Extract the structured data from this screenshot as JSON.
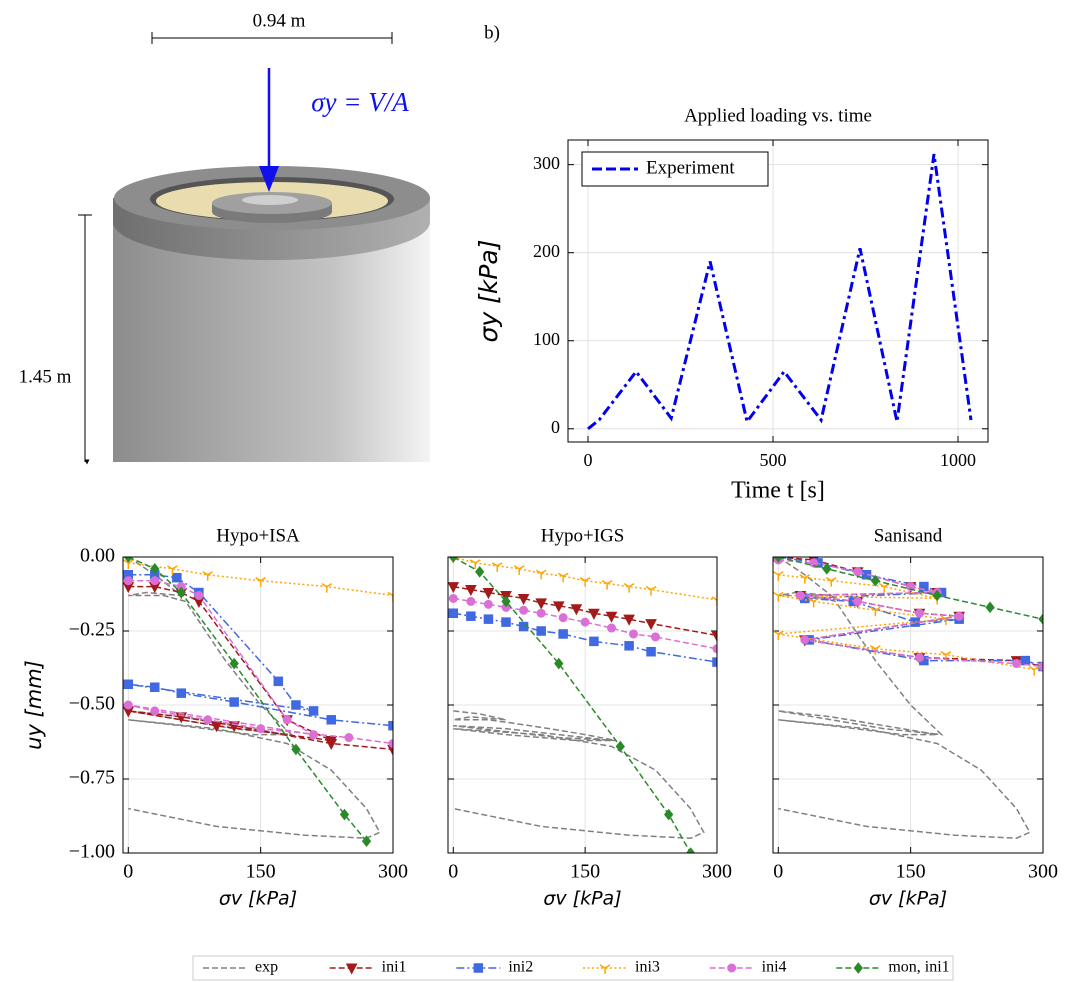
{
  "illustration": {
    "width_label": "0.94 m",
    "height_label": "1.45 m",
    "load_label": "σy = V/A",
    "panel_label": "b)"
  },
  "chart_data": [
    {
      "type": "line",
      "title": "Applied loading vs. time",
      "xlabel": "Time t [s]",
      "ylabel": "σy [kPa]",
      "xlim": [
        -54,
        1081
      ],
      "xticks": [
        0,
        500,
        1000
      ],
      "ylim": [
        -15,
        328
      ],
      "yticks": [
        0,
        100,
        200,
        300
      ],
      "grid": true,
      "legend": "upper left",
      "series": [
        {
          "name": "Experiment",
          "color": "#0000ee",
          "linestyle": "dashdot",
          "x": [
            0,
            30,
            130,
            225,
            330,
            430,
            530,
            630,
            735,
            835,
            935,
            1035
          ],
          "values": [
            0,
            10,
            65,
            12,
            190,
            8,
            65,
            10,
            205,
            8,
            312,
            10
          ]
        }
      ]
    },
    {
      "type": "line",
      "title": "Hypo+ISA",
      "xlabel": "σv [kPa]",
      "ylabel": "uy [mm]",
      "xlim": [
        -6,
        300
      ],
      "xticks": [
        0,
        150,
        300
      ],
      "ylim": [
        -1,
        0
      ],
      "yticks": [
        {
          "value": 0,
          "label": "0.00"
        },
        {
          "value": -0.25,
          "label": "−0.25"
        },
        {
          "value": -0.5,
          "label": "−0.50"
        },
        {
          "value": -0.75,
          "label": "−0.75"
        },
        {
          "value": -1,
          "label": "−1.00"
        }
      ],
      "grid": true,
      "legend": "below figure",
      "series": [
        {
          "name": "exp",
          "color": "#808080",
          "linestyle": "dashed",
          "marker": "none",
          "x": [
            0,
            30,
            60,
            20,
            0,
            40,
            65,
            110,
            150,
            185,
            120,
            60,
            0,
            60,
            120,
            180,
            140,
            60,
            0,
            100,
            180,
            230,
            270,
            285,
            270,
            200,
            100,
            0
          ],
          "values": [
            0,
            -0.06,
            -0.13,
            -0.12,
            -0.13,
            -0.13,
            -0.15,
            -0.35,
            -0.5,
            -0.6,
            -0.58,
            -0.55,
            -0.52,
            -0.54,
            -0.57,
            -0.6,
            -0.6,
            -0.57,
            -0.55,
            -0.58,
            -0.63,
            -0.72,
            -0.85,
            -0.93,
            -0.95,
            -0.94,
            -0.91,
            -0.85
          ]
        },
        {
          "name": "ini1",
          "color": "#a31a1a",
          "linestyle": "dashed",
          "marker": "triangle-down",
          "x": [
            0,
            30,
            60,
            80,
            180,
            230,
            100,
            0,
            60,
            120,
            230,
            300
          ],
          "values": [
            -0.1,
            -0.1,
            -0.12,
            -0.15,
            -0.55,
            -0.62,
            -0.57,
            -0.52,
            -0.54,
            -0.57,
            -0.63,
            -0.65
          ]
        },
        {
          "name": "ini2",
          "color": "#4169e1",
          "linestyle": "dashdot",
          "marker": "square",
          "x": [
            0,
            30,
            55,
            80,
            170,
            190,
            210,
            0,
            30,
            60,
            120,
            230,
            300
          ],
          "values": [
            -0.06,
            -0.06,
            -0.07,
            -0.12,
            -0.42,
            -0.5,
            -0.52,
            -0.43,
            -0.44,
            -0.46,
            -0.49,
            -0.55,
            -0.57
          ]
        },
        {
          "name": "ini3",
          "color": "#ffa500",
          "linestyle": "dotted",
          "marker": "tri-down",
          "x": [
            0,
            50,
            90,
            150,
            225,
            300
          ],
          "values": [
            -0.02,
            -0.04,
            -0.06,
            -0.08,
            -0.1,
            -0.13
          ]
        },
        {
          "name": "ini4",
          "color": "#da70d6",
          "linestyle": "dashed",
          "marker": "circle",
          "x": [
            0,
            30,
            60,
            80,
            180,
            210,
            0,
            30,
            90,
            150,
            250,
            300
          ],
          "values": [
            -0.08,
            -0.08,
            -0.1,
            -0.13,
            -0.55,
            -0.6,
            -0.5,
            -0.52,
            -0.55,
            -0.58,
            -0.61,
            -0.63
          ]
        },
        {
          "name": "mon, ini1",
          "color": "#2a8a2a",
          "linestyle": "dashed",
          "marker": "diamond",
          "x": [
            0,
            30,
            60,
            120,
            190,
            245,
            270
          ],
          "values": [
            0,
            -0.04,
            -0.12,
            -0.36,
            -0.65,
            -0.87,
            -0.96
          ]
        }
      ]
    },
    {
      "type": "line",
      "title": "Hypo+IGS",
      "xlabel": "σv [kPa]",
      "xlim": [
        -6,
        300
      ],
      "xticks": [
        0,
        150,
        300
      ],
      "ylim": [
        -1,
        0
      ],
      "yticks": [
        0,
        -0.25,
        -0.5,
        -0.75,
        -1
      ],
      "ytick_labels": false,
      "grid": true,
      "series": [
        {
          "name": "exp",
          "color": "#808080",
          "linestyle": "dashed",
          "marker": "none",
          "x": [
            0,
            30,
            60,
            20,
            0,
            40,
            65,
            110,
            150,
            185,
            120,
            60,
            0,
            60,
            120,
            180,
            140,
            60,
            0,
            100,
            180,
            230,
            270,
            285,
            270,
            200,
            100,
            0
          ],
          "values": [
            -0.52,
            -0.53,
            -0.55,
            -0.54,
            -0.55,
            -0.55,
            -0.56,
            -0.58,
            -0.6,
            -0.62,
            -0.61,
            -0.59,
            -0.57,
            -0.58,
            -0.6,
            -0.62,
            -0.62,
            -0.6,
            -0.58,
            -0.6,
            -0.64,
            -0.72,
            -0.85,
            -0.93,
            -0.95,
            -0.94,
            -0.91,
            -0.85
          ]
        },
        {
          "name": "ini1",
          "color": "#a31a1a",
          "linestyle": "dashed",
          "marker": "triangle-down",
          "x": [
            0,
            20,
            40,
            60,
            80,
            100,
            120,
            140,
            160,
            180,
            200,
            225,
            300
          ],
          "values": [
            -0.1,
            -0.11,
            -0.12,
            -0.13,
            -0.14,
            -0.155,
            -0.165,
            -0.175,
            -0.19,
            -0.2,
            -0.21,
            -0.225,
            -0.265
          ]
        },
        {
          "name": "ini2",
          "color": "#4169e1",
          "linestyle": "dashdot",
          "marker": "square",
          "x": [
            0,
            20,
            40,
            60,
            80,
            100,
            125,
            160,
            200,
            225,
            300
          ],
          "values": [
            -0.19,
            -0.2,
            -0.21,
            -0.22,
            -0.235,
            -0.25,
            -0.26,
            -0.285,
            -0.3,
            -0.32,
            -0.355
          ]
        },
        {
          "name": "ini3",
          "color": "#ffa500",
          "linestyle": "dotted",
          "marker": "tri-down",
          "x": [
            0,
            25,
            50,
            75,
            100,
            125,
            150,
            175,
            200,
            225,
            300
          ],
          "values": [
            0,
            -0.02,
            -0.03,
            -0.04,
            -0.055,
            -0.065,
            -0.08,
            -0.09,
            -0.1,
            -0.11,
            -0.145
          ]
        },
        {
          "name": "ini4",
          "color": "#da70d6",
          "linestyle": "dashed",
          "marker": "circle",
          "x": [
            0,
            20,
            40,
            60,
            80,
            100,
            125,
            150,
            180,
            205,
            230,
            300
          ],
          "values": [
            -0.14,
            -0.15,
            -0.16,
            -0.17,
            -0.18,
            -0.19,
            -0.205,
            -0.22,
            -0.24,
            -0.26,
            -0.27,
            -0.31
          ]
        },
        {
          "name": "mon, ini1",
          "color": "#2a8a2a",
          "linestyle": "dashed",
          "marker": "diamond",
          "x": [
            0,
            30,
            60,
            120,
            190,
            245,
            270
          ],
          "values": [
            0,
            -0.05,
            -0.15,
            -0.36,
            -0.64,
            -0.87,
            -1.0
          ]
        }
      ]
    },
    {
      "type": "line",
      "title": "Sanisand",
      "xlabel": "σv [kPa]",
      "xlim": [
        -6,
        300
      ],
      "xticks": [
        0,
        150,
        300
      ],
      "ylim": [
        -1,
        0
      ],
      "yticks": [
        0,
        -0.25,
        -0.5,
        -0.75,
        -1
      ],
      "ytick_labels": false,
      "grid": true,
      "series": [
        {
          "name": "exp",
          "color": "#808080",
          "linestyle": "dashed",
          "marker": "none",
          "x": [
            0,
            30,
            60,
            20,
            0,
            40,
            65,
            110,
            150,
            185,
            120,
            60,
            0,
            60,
            120,
            180,
            140,
            60,
            0,
            100,
            180,
            230,
            270,
            285,
            270,
            200,
            100,
            0
          ],
          "values": [
            0,
            -0.06,
            -0.13,
            -0.12,
            -0.13,
            -0.13,
            -0.15,
            -0.35,
            -0.5,
            -0.6,
            -0.58,
            -0.55,
            -0.52,
            -0.54,
            -0.57,
            -0.6,
            -0.6,
            -0.57,
            -0.55,
            -0.58,
            -0.63,
            -0.72,
            -0.85,
            -0.93,
            -0.95,
            -0.94,
            -0.91,
            -0.85
          ]
        },
        {
          "name": "ini1",
          "color": "#a31a1a",
          "linestyle": "dashed",
          "marker": "triangle-down",
          "x": [
            0,
            40,
            90,
            150,
            180,
            25,
            90,
            160,
            205,
            30,
            160,
            270,
            300
          ],
          "values": [
            0,
            -0.01,
            -0.05,
            -0.1,
            -0.12,
            -0.13,
            -0.15,
            -0.19,
            -0.2,
            -0.28,
            -0.34,
            -0.35,
            -0.37
          ]
        },
        {
          "name": "ini2",
          "color": "#4169e1",
          "linestyle": "dashdot",
          "marker": "square",
          "x": [
            0,
            45,
            100,
            165,
            185,
            30,
            85,
            155,
            205,
            35,
            165,
            280,
            300
          ],
          "values": [
            0,
            -0.02,
            -0.06,
            -0.1,
            -0.12,
            -0.14,
            -0.15,
            -0.22,
            -0.21,
            -0.28,
            -0.35,
            -0.35,
            -0.37
          ]
        },
        {
          "name": "ini3",
          "color": "#ffa500",
          "linestyle": "dotted",
          "marker": "tri-down",
          "x": [
            0,
            30,
            60,
            120,
            180,
            0,
            40,
            110,
            190,
            0,
            110,
            190,
            290,
            300
          ],
          "values": [
            -0.06,
            -0.07,
            -0.08,
            -0.1,
            -0.14,
            -0.13,
            -0.15,
            -0.18,
            -0.21,
            -0.26,
            -0.31,
            -0.33,
            -0.38,
            -0.37
          ]
        },
        {
          "name": "ini4",
          "color": "#da70d6",
          "linestyle": "dashed",
          "marker": "circle",
          "x": [
            0,
            40,
            90,
            150,
            180,
            25,
            90,
            160,
            205,
            30,
            160,
            270,
            300
          ],
          "values": [
            -0.01,
            -0.02,
            -0.05,
            -0.1,
            -0.12,
            -0.13,
            -0.15,
            -0.19,
            -0.2,
            -0.28,
            -0.34,
            -0.36,
            -0.37
          ]
        },
        {
          "name": "mon, ini1",
          "color": "#2a8a2a",
          "linestyle": "dashed",
          "marker": "diamond",
          "x": [
            0,
            55,
            110,
            180,
            240,
            300
          ],
          "values": [
            0,
            -0.04,
            -0.08,
            -0.13,
            -0.17,
            -0.21
          ]
        }
      ]
    }
  ]
}
